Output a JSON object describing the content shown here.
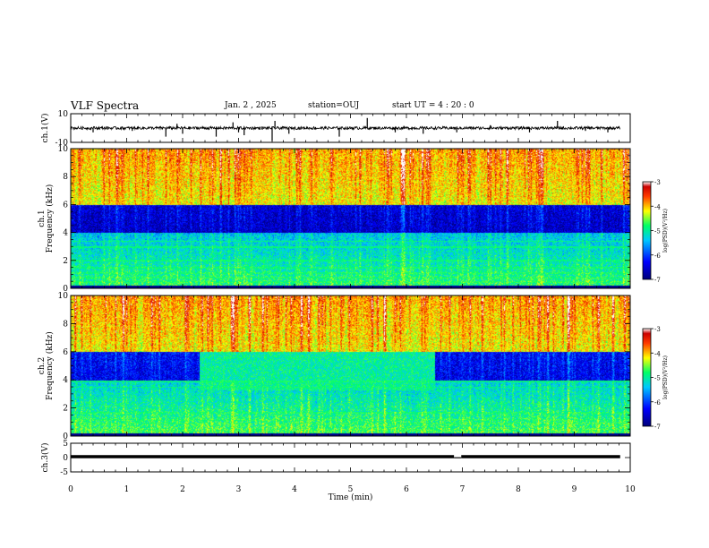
{
  "header": {
    "title": "VLF Spectra",
    "date": "Jan. 2 , 2025",
    "station": "station=OUJ",
    "start": "start UT =  4 : 20 : 0"
  },
  "chart_data": [
    {
      "type": "line",
      "panel": "ch1-waveform",
      "ylabel": "ch.1(V)",
      "ylim": [
        -10,
        10
      ],
      "yticks": [
        "10",
        "-10"
      ],
      "xlim": [
        0,
        10
      ],
      "baseline": 0,
      "noise_amplitude": 1.0,
      "spikes": [
        {
          "x": 0.4,
          "y": -3
        },
        {
          "x": 1.1,
          "y": -2
        },
        {
          "x": 1.7,
          "y": -6
        },
        {
          "x": 1.9,
          "y": 3
        },
        {
          "x": 2.0,
          "y": -4
        },
        {
          "x": 2.6,
          "y": -6
        },
        {
          "x": 2.9,
          "y": 4
        },
        {
          "x": 3.0,
          "y": -3
        },
        {
          "x": 3.1,
          "y": -5
        },
        {
          "x": 3.6,
          "y": -9
        },
        {
          "x": 3.65,
          "y": 5
        },
        {
          "x": 3.9,
          "y": -4
        },
        {
          "x": 4.8,
          "y": -6
        },
        {
          "x": 5.3,
          "y": 7
        },
        {
          "x": 5.8,
          "y": -3
        },
        {
          "x": 6.3,
          "y": -4
        },
        {
          "x": 6.9,
          "y": -3
        },
        {
          "x": 7.5,
          "y": 2
        },
        {
          "x": 8.2,
          "y": -3
        },
        {
          "x": 8.7,
          "y": 5
        },
        {
          "x": 9.2,
          "y": -2
        },
        {
          "x": 9.6,
          "y": -3
        }
      ]
    },
    {
      "type": "heatmap",
      "panel": "ch1-spectrogram",
      "ylabel": "ch.1\nFrequency (kHz)",
      "ylim": [
        0,
        10
      ],
      "yticks": [
        "0",
        "2",
        "4",
        "6",
        "8",
        "10"
      ],
      "xlim": [
        0,
        10
      ],
      "colorbar": {
        "label": "log(PSD)(V²/Hz)",
        "range": [
          -7,
          -3
        ],
        "ticks": [
          "-3",
          "-4",
          "-5",
          "-6",
          "-7"
        ]
      },
      "description_bands": {
        "upper_band_khz": [
          6,
          10
        ],
        "dark_band_khz": [
          4,
          6
        ],
        "lower_band_khz": [
          0,
          4
        ],
        "upper_level": -4.2,
        "dark_level": -6.6,
        "lower_level": -5.4
      },
      "tones_khz": [
        0.5,
        0.8,
        1.1,
        1.5,
        2.0,
        3.0,
        3.4
      ],
      "enhanced_region": null
    },
    {
      "type": "heatmap",
      "panel": "ch2-spectrogram",
      "ylabel": "ch.2\nFrequency (kHz)",
      "ylim": [
        0,
        10
      ],
      "yticks": [
        "0",
        "2",
        "4",
        "6",
        "8",
        "10"
      ],
      "xlim": [
        0,
        10
      ],
      "colorbar": {
        "label": "log(PSD)(V²/Hz)",
        "range": [
          -7,
          -3
        ],
        "ticks": [
          "-3",
          "-4",
          "-5",
          "-6",
          "-7"
        ]
      },
      "description_bands": {
        "upper_band_khz": [
          6,
          10
        ],
        "dark_band_khz": [
          4,
          6
        ],
        "lower_band_khz": [
          0,
          4
        ],
        "upper_level": -4.2,
        "dark_level": -6.4,
        "lower_level": -5.3
      },
      "tones_khz": [
        0.5,
        0.9,
        1.2,
        1.7,
        3.5,
        3.9
      ],
      "enhanced_region": {
        "x": [
          2.3,
          6.5
        ],
        "khz": [
          3.3,
          6.8
        ],
        "level": -5.0
      }
    },
    {
      "type": "line",
      "panel": "ch3-waveform",
      "ylabel": "ch.3(V)",
      "ylim": [
        -5,
        5
      ],
      "yticks": [
        "5",
        "0",
        "-5"
      ],
      "xlim": [
        0,
        10
      ],
      "baseline": 0,
      "gap_x": [
        6.85,
        6.98
      ]
    }
  ],
  "xaxis": {
    "label": "Time (min)",
    "ticks": [
      "0",
      "1",
      "2",
      "3",
      "4",
      "5",
      "6",
      "7",
      "8",
      "9",
      "10"
    ]
  },
  "colors": {
    "colormap": [
      "#00007a",
      "#0000ff",
      "#00c8ff",
      "#00ff66",
      "#ffff00",
      "#ff5a00",
      "#cc0000",
      "#ffffff"
    ],
    "line": "#000000"
  }
}
